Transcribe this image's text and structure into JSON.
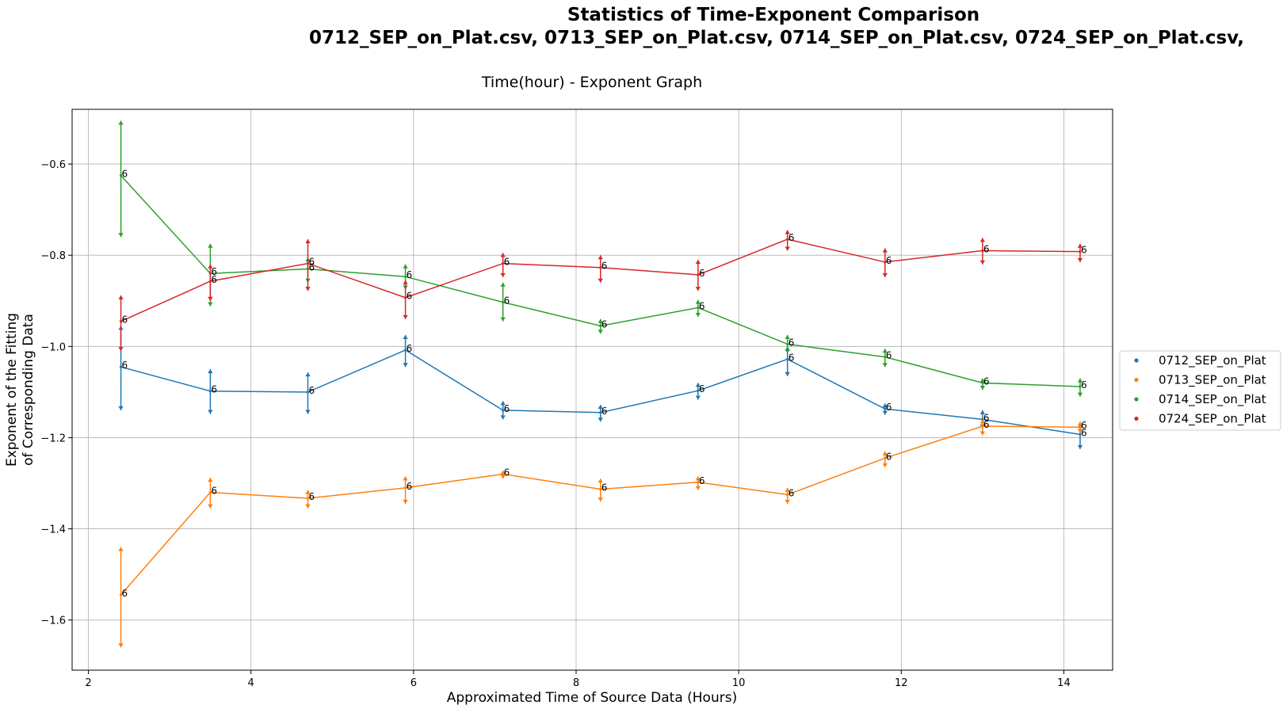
{
  "chart_data": {
    "type": "line",
    "title_line1": "Statistics of    Time-Exponent Comparison",
    "title_line2": "0712_SEP_on_Plat.csv, 0713_SEP_on_Plat.csv, 0714_SEP_on_Plat.csv, 0724_SEP_on_Plat.csv,",
    "subtitle": "Time(hour) - Exponent Graph",
    "xlabel": "Approximated Time of Source Data (Hours)",
    "ylabel_line1": "Exponent of the Fitting",
    "ylabel_line2": "of Corresponding Data",
    "xlim": [
      1.8,
      14.6
    ],
    "ylim": [
      -1.71,
      -0.48
    ],
    "x_ticks": [
      2,
      4,
      6,
      8,
      10,
      12,
      14
    ],
    "x_tick_labels": [
      "2",
      "4",
      "6",
      "8",
      "10",
      "12",
      "14"
    ],
    "y_ticks": [
      -1.6,
      -1.4,
      -1.2,
      -1.0,
      -0.8,
      -0.6
    ],
    "y_tick_labels": [
      "−1.6",
      "−1.4",
      "−1.2",
      "−1.0",
      "−0.8",
      "−0.6"
    ],
    "grid": true,
    "legend_position": "right",
    "x": [
      2.4,
      3.5,
      4.7,
      5.9,
      7.1,
      8.3,
      9.5,
      10.6,
      11.8,
      13.0,
      14.2
    ],
    "series": [
      {
        "name": "0712_SEP_on_Plat",
        "color": "#1f77b4",
        "values": [
          -1.045,
          -1.098,
          -1.1,
          -1.008,
          -1.14,
          -1.145,
          -1.097,
          -1.028,
          -1.137,
          -1.16,
          -1.193
        ],
        "upper": [
          -0.955,
          -1.05,
          -1.057,
          -0.975,
          -1.12,
          -1.128,
          -1.08,
          -1.0,
          -1.125,
          -1.14,
          -1.17
        ],
        "lower": [
          -1.14,
          -1.148,
          -1.148,
          -1.045,
          -1.16,
          -1.165,
          -1.117,
          -1.065,
          -1.15,
          -1.18,
          -1.225
        ],
        "labels": [
          "6",
          "6",
          "6",
          "6",
          "6",
          "6",
          "6",
          "6",
          "6",
          "6",
          "6"
        ]
      },
      {
        "name": "0713_SEP_on_Plat",
        "color": "#ff7f0e",
        "values": [
          -1.545,
          -1.32,
          -1.333,
          -1.31,
          -1.28,
          -1.313,
          -1.298,
          -1.325,
          -1.245,
          -1.175,
          -1.177
        ],
        "upper": [
          -1.44,
          -1.288,
          -1.315,
          -1.285,
          -1.272,
          -1.29,
          -1.285,
          -1.31,
          -1.23,
          -1.16,
          -1.165
        ],
        "lower": [
          -1.66,
          -1.355,
          -1.355,
          -1.345,
          -1.29,
          -1.34,
          -1.315,
          -1.345,
          -1.265,
          -1.195,
          -1.19
        ],
        "labels": [
          "6",
          "6",
          "6",
          "6",
          "6",
          "6",
          "6",
          "6",
          "6",
          "6",
          "6"
        ]
      },
      {
        "name": "0714_SEP_on_Plat",
        "color": "#2ca02c",
        "values": [
          -0.625,
          -0.84,
          -0.83,
          -0.847,
          -0.903,
          -0.955,
          -0.915,
          -0.995,
          -1.023,
          -1.08,
          -1.088
        ],
        "upper": [
          -0.505,
          -0.775,
          -0.805,
          -0.82,
          -0.86,
          -0.94,
          -0.898,
          -0.975,
          -1.005,
          -1.07,
          -1.07
        ],
        "lower": [
          -0.76,
          -0.912,
          -0.86,
          -0.875,
          -0.945,
          -0.972,
          -0.935,
          -1.015,
          -1.045,
          -1.095,
          -1.11
        ],
        "labels": [
          "6",
          "6",
          "6",
          "6",
          "6",
          "6",
          "6",
          "6",
          "6",
          "6",
          "6"
        ]
      },
      {
        "name": "0724_SEP_on_Plat",
        "color": "#d62728",
        "values": [
          -0.945,
          -0.857,
          -0.818,
          -0.893,
          -0.818,
          -0.827,
          -0.843,
          -0.765,
          -0.815,
          -0.79,
          -0.792
        ],
        "upper": [
          -0.888,
          -0.82,
          -0.765,
          -0.855,
          -0.795,
          -0.8,
          -0.81,
          -0.745,
          -0.785,
          -0.762,
          -0.775
        ],
        "lower": [
          -1.01,
          -0.9,
          -0.878,
          -0.94,
          -0.848,
          -0.86,
          -0.878,
          -0.79,
          -0.848,
          -0.82,
          -0.815
        ],
        "labels": [
          "6",
          "6",
          "6",
          "6",
          "6",
          "6",
          "6",
          "6",
          "6",
          "6",
          "6"
        ]
      }
    ]
  }
}
